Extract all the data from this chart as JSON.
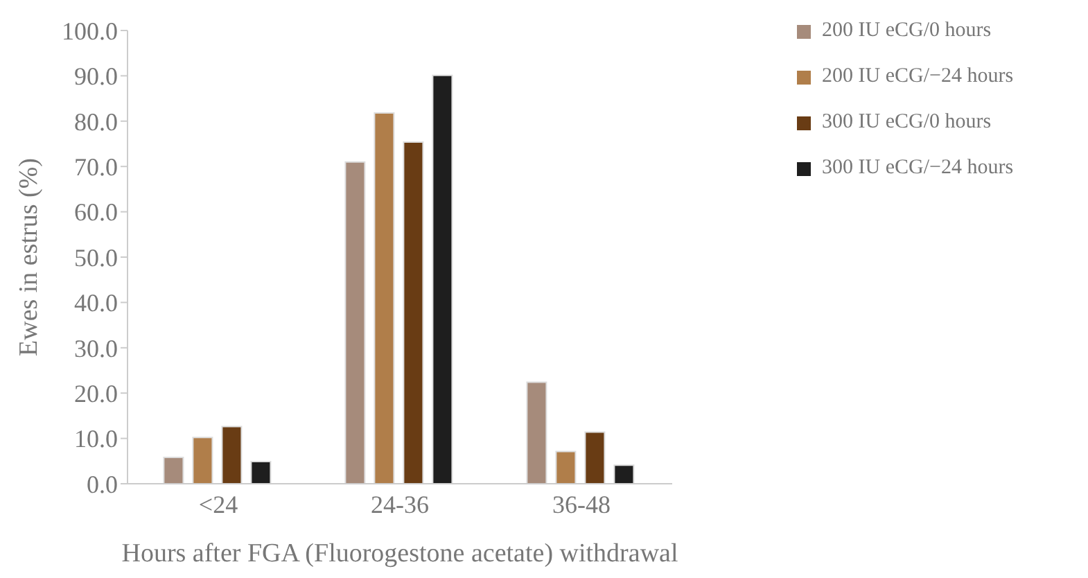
{
  "chart_data": {
    "type": "bar",
    "xlabel": "Hours after FGA (Fluorogestone acetate) withdrawal",
    "ylabel": "Ewes in estrus (%)",
    "categories": [
      "<24",
      "24-36",
      "36-48"
    ],
    "series": [
      {
        "name": "200 IU eCG/0 hours",
        "color": "#a68b7b",
        "values": [
          5.8,
          71.0,
          22.4
        ]
      },
      {
        "name": "200 IU eCG/−24 hours",
        "color": "#b07e4a",
        "values": [
          10.2,
          81.8,
          7.1
        ]
      },
      {
        "name": "300 IU eCG/0 hours",
        "color": "#693c14",
        "values": [
          12.6,
          75.4,
          11.4
        ]
      },
      {
        "name": "300 IU eCG/−24 hours",
        "color": "#1e1e1e",
        "values": [
          4.9,
          90.1,
          4.1
        ]
      }
    ],
    "ylim": [
      0,
      100
    ],
    "yticks": [
      {
        "value": 0,
        "label": "0.0"
      },
      {
        "value": 10,
        "label": "10.0"
      },
      {
        "value": 20,
        "label": "20.0"
      },
      {
        "value": 30,
        "label": "30.0"
      },
      {
        "value": 40,
        "label": "40.0"
      },
      {
        "value": 50,
        "label": "50.0"
      },
      {
        "value": 60,
        "label": "60.0"
      },
      {
        "value": 70,
        "label": "70.0"
      },
      {
        "value": 80,
        "label": "80.0"
      },
      {
        "value": 90,
        "label": "90.0"
      },
      {
        "value": 100,
        "label": "100.0"
      }
    ],
    "grid": false,
    "legend": "top right"
  }
}
